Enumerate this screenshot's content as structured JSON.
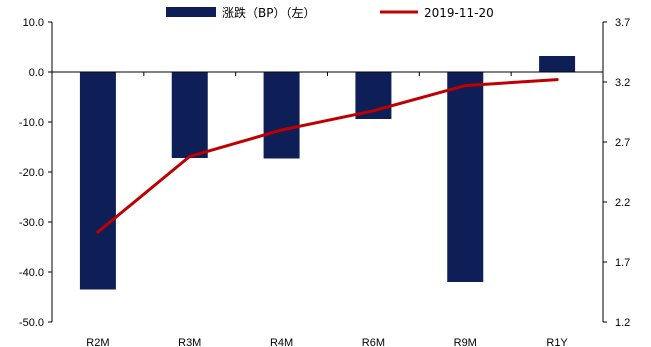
{
  "chart_data": {
    "type": "bar",
    "categories": [
      "R2M",
      "R3M",
      "R4M",
      "R6M",
      "R9M",
      "R1Y"
    ],
    "series": [
      {
        "name": "涨跌（BP）（左）",
        "type": "bar",
        "axis": "left",
        "color": "#0d1f56",
        "values": [
          -43.5,
          -17.2,
          -17.3,
          -9.4,
          -42.0,
          3.2
        ]
      },
      {
        "name": "2019-11-20",
        "type": "line",
        "axis": "right",
        "color": "#c00000",
        "values": [
          1.95,
          2.58,
          2.8,
          2.96,
          3.17,
          3.22
        ]
      }
    ],
    "y_left": {
      "range": [
        -50,
        10
      ],
      "ticks": [
        "10.0",
        "0.0",
        "-10.0",
        "-20.0",
        "-30.0",
        "-40.0",
        "-50.0"
      ]
    },
    "y_right": {
      "range": [
        1.2,
        3.7
      ],
      "ticks": [
        "3.7",
        "3.2",
        "2.7",
        "2.2",
        "1.7",
        "1.2"
      ]
    },
    "grid": false,
    "legend": "top"
  }
}
